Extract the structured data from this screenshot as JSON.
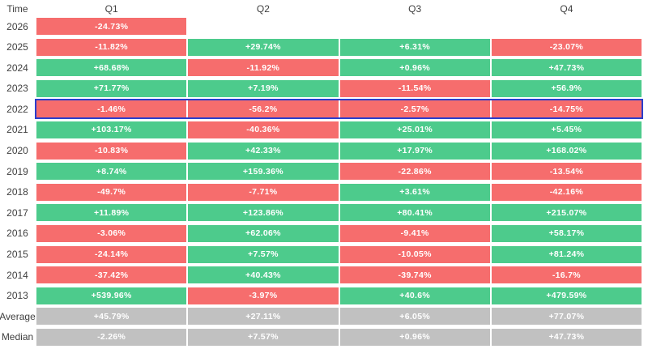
{
  "header": {
    "time_label": "Time",
    "quarters": [
      "Q1",
      "Q2",
      "Q3",
      "Q4"
    ]
  },
  "colors": {
    "positive_cell": "#4dcb8c",
    "negative_cell": "#f66d6d",
    "summary_cell": "#c1c1c1",
    "highlight_border": "#2b3ecc",
    "cell_text": "#ffffff",
    "label_text": "#3f3f3f",
    "background": "#ffffff"
  },
  "highlighted_row": "2022",
  "rows": [
    {
      "label": "2026",
      "cells": [
        {
          "text": "-24.73%",
          "tone": "negative"
        },
        {
          "text": "",
          "tone": "empty"
        },
        {
          "text": "",
          "tone": "empty"
        },
        {
          "text": "",
          "tone": "empty"
        }
      ]
    },
    {
      "label": "2025",
      "cells": [
        {
          "text": "-11.82%",
          "tone": "negative"
        },
        {
          "text": "+29.74%",
          "tone": "positive"
        },
        {
          "text": "+6.31%",
          "tone": "positive"
        },
        {
          "text": "-23.07%",
          "tone": "negative"
        }
      ]
    },
    {
      "label": "2024",
      "cells": [
        {
          "text": "+68.68%",
          "tone": "positive"
        },
        {
          "text": "-11.92%",
          "tone": "negative"
        },
        {
          "text": "+0.96%",
          "tone": "positive"
        },
        {
          "text": "+47.73%",
          "tone": "positive"
        }
      ]
    },
    {
      "label": "2023",
      "cells": [
        {
          "text": "+71.77%",
          "tone": "positive"
        },
        {
          "text": "+7.19%",
          "tone": "positive"
        },
        {
          "text": "-11.54%",
          "tone": "negative"
        },
        {
          "text": "+56.9%",
          "tone": "positive"
        }
      ]
    },
    {
      "label": "2022",
      "highlighted": true,
      "cells": [
        {
          "text": "-1.46%",
          "tone": "negative"
        },
        {
          "text": "-56.2%",
          "tone": "negative"
        },
        {
          "text": "-2.57%",
          "tone": "negative"
        },
        {
          "text": "-14.75%",
          "tone": "negative"
        }
      ]
    },
    {
      "label": "2021",
      "cells": [
        {
          "text": "+103.17%",
          "tone": "positive"
        },
        {
          "text": "-40.36%",
          "tone": "negative"
        },
        {
          "text": "+25.01%",
          "tone": "positive"
        },
        {
          "text": "+5.45%",
          "tone": "positive"
        }
      ]
    },
    {
      "label": "2020",
      "cells": [
        {
          "text": "-10.83%",
          "tone": "negative"
        },
        {
          "text": "+42.33%",
          "tone": "positive"
        },
        {
          "text": "+17.97%",
          "tone": "positive"
        },
        {
          "text": "+168.02%",
          "tone": "positive"
        }
      ]
    },
    {
      "label": "2019",
      "cells": [
        {
          "text": "+8.74%",
          "tone": "positive"
        },
        {
          "text": "+159.36%",
          "tone": "positive"
        },
        {
          "text": "-22.86%",
          "tone": "negative"
        },
        {
          "text": "-13.54%",
          "tone": "negative"
        }
      ]
    },
    {
      "label": "2018",
      "cells": [
        {
          "text": "-49.7%",
          "tone": "negative"
        },
        {
          "text": "-7.71%",
          "tone": "negative"
        },
        {
          "text": "+3.61%",
          "tone": "positive"
        },
        {
          "text": "-42.16%",
          "tone": "negative"
        }
      ]
    },
    {
      "label": "2017",
      "cells": [
        {
          "text": "+11.89%",
          "tone": "positive"
        },
        {
          "text": "+123.86%",
          "tone": "positive"
        },
        {
          "text": "+80.41%",
          "tone": "positive"
        },
        {
          "text": "+215.07%",
          "tone": "positive"
        }
      ]
    },
    {
      "label": "2016",
      "cells": [
        {
          "text": "-3.06%",
          "tone": "negative"
        },
        {
          "text": "+62.06%",
          "tone": "positive"
        },
        {
          "text": "-9.41%",
          "tone": "negative"
        },
        {
          "text": "+58.17%",
          "tone": "positive"
        }
      ]
    },
    {
      "label": "2015",
      "cells": [
        {
          "text": "-24.14%",
          "tone": "negative"
        },
        {
          "text": "+7.57%",
          "tone": "positive"
        },
        {
          "text": "-10.05%",
          "tone": "negative"
        },
        {
          "text": "+81.24%",
          "tone": "positive"
        }
      ]
    },
    {
      "label": "2014",
      "cells": [
        {
          "text": "-37.42%",
          "tone": "negative"
        },
        {
          "text": "+40.43%",
          "tone": "positive"
        },
        {
          "text": "-39.74%",
          "tone": "negative"
        },
        {
          "text": "-16.7%",
          "tone": "negative"
        }
      ]
    },
    {
      "label": "2013",
      "cells": [
        {
          "text": "+539.96%",
          "tone": "positive"
        },
        {
          "text": "-3.97%",
          "tone": "negative"
        },
        {
          "text": "+40.6%",
          "tone": "positive"
        },
        {
          "text": "+479.59%",
          "tone": "positive"
        }
      ]
    },
    {
      "label": "Average",
      "summary": true,
      "cells": [
        {
          "text": "+45.79%",
          "tone": "summary"
        },
        {
          "text": "+27.11%",
          "tone": "summary"
        },
        {
          "text": "+6.05%",
          "tone": "summary"
        },
        {
          "text": "+77.07%",
          "tone": "summary"
        }
      ]
    },
    {
      "label": "Median",
      "summary": true,
      "cells": [
        {
          "text": "-2.26%",
          "tone": "summary"
        },
        {
          "text": "+7.57%",
          "tone": "summary"
        },
        {
          "text": "+0.96%",
          "tone": "summary"
        },
        {
          "text": "+47.73%",
          "tone": "summary"
        }
      ]
    }
  ],
  "chart_data": {
    "type": "heatmap",
    "title": "",
    "corner_label": "Time",
    "categories": [
      "Q1",
      "Q2",
      "Q3",
      "Q4"
    ],
    "row_labels": [
      "2026",
      "2025",
      "2024",
      "2023",
      "2022",
      "2021",
      "2020",
      "2019",
      "2018",
      "2017",
      "2016",
      "2015",
      "2014",
      "2013",
      "Average",
      "Median"
    ],
    "values_percent": [
      [
        -24.73,
        null,
        null,
        null
      ],
      [
        -11.82,
        29.74,
        6.31,
        -23.07
      ],
      [
        68.68,
        -11.92,
        0.96,
        47.73
      ],
      [
        71.77,
        7.19,
        -11.54,
        56.9
      ],
      [
        -1.46,
        -56.2,
        -2.57,
        -14.75
      ],
      [
        103.17,
        -40.36,
        25.01,
        5.45
      ],
      [
        -10.83,
        42.33,
        17.97,
        168.02
      ],
      [
        8.74,
        159.36,
        -22.86,
        -13.54
      ],
      [
        -49.7,
        -7.71,
        3.61,
        -42.16
      ],
      [
        11.89,
        123.86,
        80.41,
        215.07
      ],
      [
        -3.06,
        62.06,
        -9.41,
        58.17
      ],
      [
        -24.14,
        7.57,
        -10.05,
        81.24
      ],
      [
        -37.42,
        40.43,
        -39.74,
        -16.7
      ],
      [
        539.96,
        -3.97,
        40.6,
        479.59
      ],
      [
        45.79,
        27.11,
        6.05,
        77.07
      ],
      [
        -2.26,
        7.57,
        0.96,
        47.73
      ]
    ],
    "color_rule": "positive=green, negative=red, Average/Median rows=gray, empty=white",
    "highlighted_row": "2022",
    "legend_position": "none",
    "grid": false
  }
}
